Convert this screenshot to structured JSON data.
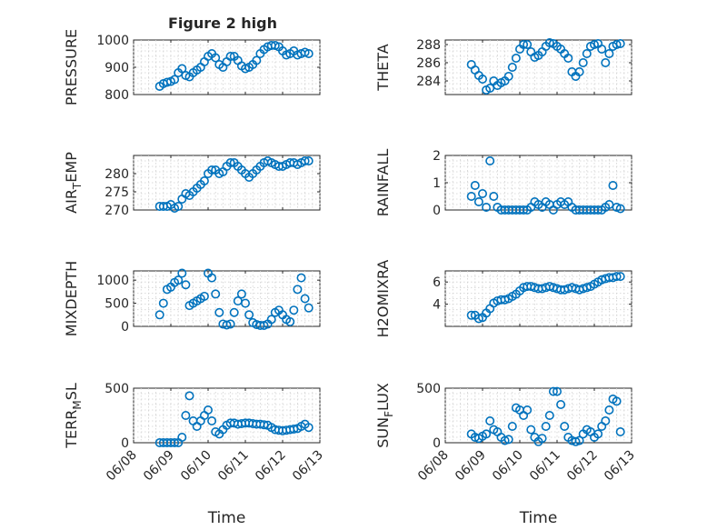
{
  "chart_data": [
    {
      "type": "scatter",
      "title": "Figure 2 high",
      "ylabel": "PRESSURE",
      "xlabel": "",
      "xlim": [
        0,
        5
      ],
      "ylim": [
        800,
        1000
      ],
      "yticks": [
        800,
        900,
        1000
      ],
      "xticklabels": [],
      "x": [
        0.7,
        0.8,
        0.9,
        1.0,
        1.1,
        1.2,
        1.3,
        1.4,
        1.5,
        1.6,
        1.7,
        1.8,
        1.9,
        2.0,
        2.1,
        2.2,
        2.3,
        2.4,
        2.5,
        2.6,
        2.7,
        2.8,
        2.9,
        3.0,
        3.1,
        3.2,
        3.3,
        3.4,
        3.5,
        3.6,
        3.7,
        3.8,
        3.9,
        4.0,
        4.1,
        4.2,
        4.3,
        4.4,
        4.5,
        4.6,
        4.7
      ],
      "y": [
        830,
        840,
        845,
        848,
        855,
        880,
        895,
        870,
        865,
        880,
        890,
        900,
        920,
        940,
        950,
        935,
        910,
        900,
        920,
        940,
        940,
        925,
        905,
        895,
        900,
        910,
        925,
        950,
        965,
        975,
        980,
        980,
        975,
        960,
        945,
        950,
        960,
        945,
        950,
        955,
        950
      ]
    },
    {
      "type": "scatter",
      "title": "",
      "ylabel": "THETA",
      "xlabel": "",
      "xlim": [
        0,
        5
      ],
      "ylim": [
        282.5,
        288.5
      ],
      "yticks": [
        284,
        286,
        288
      ],
      "xticklabels": [],
      "x": [
        0.7,
        0.8,
        0.9,
        1.0,
        1.1,
        1.2,
        1.3,
        1.4,
        1.5,
        1.6,
        1.7,
        1.8,
        1.9,
        2.0,
        2.1,
        2.2,
        2.3,
        2.4,
        2.5,
        2.6,
        2.7,
        2.8,
        2.9,
        3.0,
        3.1,
        3.2,
        3.3,
        3.4,
        3.5,
        3.6,
        3.7,
        3.8,
        3.9,
        4.0,
        4.1,
        4.2,
        4.3,
        4.4,
        4.5,
        4.6,
        4.7
      ],
      "y": [
        285.8,
        285.2,
        284.6,
        284.2,
        283.0,
        283.2,
        284.0,
        283.5,
        283.8,
        284.0,
        284.5,
        285.5,
        286.5,
        287.5,
        288.0,
        288.0,
        287.2,
        286.6,
        286.8,
        287.2,
        287.8,
        288.2,
        288.1,
        287.8,
        287.5,
        287.0,
        286.5,
        285.0,
        284.5,
        285.0,
        286.0,
        287.0,
        287.8,
        288.0,
        288.1,
        287.5,
        286.0,
        287.0,
        287.8,
        288.0,
        288.1
      ]
    },
    {
      "type": "scatter",
      "title": "",
      "ylabel": "AIR_TEMP",
      "xlabel": "",
      "xlim": [
        0,
        5
      ],
      "ylim": [
        270,
        285
      ],
      "yticks": [
        270,
        275,
        280
      ],
      "xticklabels": [],
      "x": [
        0.7,
        0.8,
        0.9,
        1.0,
        1.1,
        1.2,
        1.3,
        1.4,
        1.5,
        1.6,
        1.7,
        1.8,
        1.9,
        2.0,
        2.1,
        2.2,
        2.3,
        2.4,
        2.5,
        2.6,
        2.7,
        2.8,
        2.9,
        3.0,
        3.1,
        3.2,
        3.3,
        3.4,
        3.5,
        3.6,
        3.7,
        3.8,
        3.9,
        4.0,
        4.1,
        4.2,
        4.3,
        4.4,
        4.5,
        4.6,
        4.7
      ],
      "y": [
        271,
        271,
        271,
        271.5,
        270.5,
        271,
        273,
        274.5,
        274,
        275,
        276,
        277,
        278,
        280,
        281,
        281,
        280,
        280.5,
        282,
        283,
        283,
        282,
        281,
        280,
        279,
        280,
        281,
        282,
        283,
        283.5,
        283,
        282.5,
        282,
        282,
        282.5,
        283,
        283,
        282.5,
        283,
        283.5,
        283.5
      ]
    },
    {
      "type": "scatter",
      "title": "",
      "ylabel": "RAINFALL",
      "xlabel": "",
      "xlim": [
        0,
        5
      ],
      "ylim": [
        0,
        2
      ],
      "yticks": [
        0,
        1,
        2
      ],
      "xticklabels": [],
      "x": [
        0.7,
        0.8,
        0.9,
        1.0,
        1.1,
        1.2,
        1.3,
        1.4,
        1.5,
        1.6,
        1.7,
        1.8,
        1.9,
        2.0,
        2.1,
        2.2,
        2.3,
        2.4,
        2.5,
        2.6,
        2.7,
        2.8,
        2.9,
        3.0,
        3.1,
        3.2,
        3.3,
        3.4,
        3.5,
        3.6,
        3.7,
        3.8,
        3.9,
        4.0,
        4.1,
        4.2,
        4.3,
        4.4,
        4.5,
        4.6,
        4.7
      ],
      "y": [
        0.5,
        0.9,
        0.3,
        0.6,
        0.1,
        1.8,
        0.5,
        0.1,
        0,
        0,
        0,
        0,
        0,
        0,
        0,
        0,
        0.1,
        0.3,
        0.2,
        0.1,
        0.3,
        0.2,
        0,
        0.2,
        0.3,
        0.2,
        0.3,
        0.1,
        0,
        0,
        0,
        0,
        0,
        0,
        0,
        0,
        0.1,
        0.2,
        0.9,
        0.1,
        0.05
      ]
    },
    {
      "type": "scatter",
      "title": "",
      "ylabel": "MIXDEPTH",
      "xlabel": "",
      "xlim": [
        0,
        5
      ],
      "ylim": [
        0,
        1200
      ],
      "yticks": [
        0,
        500,
        1000
      ],
      "xticklabels": [],
      "x": [
        0.7,
        0.8,
        0.9,
        1.0,
        1.1,
        1.2,
        1.3,
        1.4,
        1.5,
        1.6,
        1.7,
        1.8,
        1.9,
        2.0,
        2.1,
        2.2,
        2.3,
        2.4,
        2.5,
        2.6,
        2.7,
        2.8,
        2.9,
        3.0,
        3.1,
        3.2,
        3.3,
        3.4,
        3.5,
        3.6,
        3.7,
        3.8,
        3.9,
        4.0,
        4.1,
        4.2,
        4.3,
        4.4,
        4.5,
        4.6,
        4.7
      ],
      "y": [
        250,
        500,
        800,
        850,
        950,
        1000,
        1150,
        900,
        450,
        500,
        550,
        600,
        650,
        1150,
        1050,
        700,
        300,
        50,
        30,
        50,
        300,
        550,
        700,
        500,
        250,
        80,
        40,
        20,
        20,
        50,
        150,
        300,
        350,
        250,
        150,
        100,
        350,
        800,
        1050,
        600,
        400
      ]
    },
    {
      "type": "scatter",
      "title": "",
      "ylabel": "H2OMIXRA",
      "xlabel": "",
      "xlim": [
        0,
        5
      ],
      "ylim": [
        2,
        7
      ],
      "yticks": [
        4,
        6
      ],
      "xticklabels": [],
      "x": [
        0.7,
        0.8,
        0.9,
        1.0,
        1.1,
        1.2,
        1.3,
        1.4,
        1.5,
        1.6,
        1.7,
        1.8,
        1.9,
        2.0,
        2.1,
        2.2,
        2.3,
        2.4,
        2.5,
        2.6,
        2.7,
        2.8,
        2.9,
        3.0,
        3.1,
        3.2,
        3.3,
        3.4,
        3.5,
        3.6,
        3.7,
        3.8,
        3.9,
        4.0,
        4.1,
        4.2,
        4.3,
        4.4,
        4.5,
        4.6,
        4.7
      ],
      "y": [
        3,
        3,
        2.7,
        2.8,
        3.2,
        3.6,
        4.1,
        4.3,
        4.4,
        4.4,
        4.5,
        4.7,
        4.9,
        5.2,
        5.5,
        5.6,
        5.6,
        5.5,
        5.4,
        5.4,
        5.5,
        5.6,
        5.5,
        5.4,
        5.3,
        5.3,
        5.4,
        5.5,
        5.4,
        5.3,
        5.4,
        5.5,
        5.6,
        5.8,
        6.0,
        6.2,
        6.3,
        6.4,
        6.4,
        6.5,
        6.5
      ]
    },
    {
      "type": "scatter",
      "title": "",
      "ylabel": "TERR_MSL",
      "xlabel": "Time",
      "xlim": [
        0,
        5
      ],
      "ylim": [
        0,
        500
      ],
      "yticks": [
        0,
        500
      ],
      "xticklabels": [
        "06/08",
        "06/09",
        "06/10",
        "06/11",
        "06/12",
        "06/13"
      ],
      "x": [
        0.7,
        0.8,
        0.9,
        1.0,
        1.1,
        1.2,
        1.3,
        1.4,
        1.5,
        1.6,
        1.7,
        1.8,
        1.9,
        2.0,
        2.1,
        2.2,
        2.3,
        2.4,
        2.5,
        2.6,
        2.7,
        2.8,
        2.9,
        3.0,
        3.1,
        3.2,
        3.3,
        3.4,
        3.5,
        3.6,
        3.7,
        3.8,
        3.9,
        4.0,
        4.1,
        4.2,
        4.3,
        4.4,
        4.5,
        4.6,
        4.7
      ],
      "y": [
        0,
        0,
        0,
        0,
        0,
        0,
        50,
        250,
        430,
        200,
        150,
        200,
        250,
        300,
        200,
        100,
        80,
        120,
        160,
        180,
        180,
        170,
        175,
        180,
        180,
        175,
        170,
        170,
        165,
        160,
        140,
        120,
        115,
        110,
        115,
        120,
        125,
        130,
        150,
        170,
        140
      ]
    },
    {
      "type": "scatter",
      "title": "",
      "ylabel": "SUN_FLUX",
      "xlabel": "Time",
      "xlim": [
        0,
        5
      ],
      "ylim": [
        0,
        500
      ],
      "yticks": [
        0,
        500
      ],
      "xticklabels": [
        "06/08",
        "06/09",
        "06/10",
        "06/11",
        "06/12",
        "06/13"
      ],
      "x": [
        0.7,
        0.8,
        0.9,
        1.0,
        1.1,
        1.2,
        1.3,
        1.4,
        1.5,
        1.6,
        1.7,
        1.8,
        1.9,
        2.0,
        2.1,
        2.2,
        2.3,
        2.4,
        2.5,
        2.6,
        2.7,
        2.8,
        2.9,
        3.0,
        3.1,
        3.2,
        3.3,
        3.4,
        3.5,
        3.6,
        3.7,
        3.8,
        3.9,
        4.0,
        4.1,
        4.2,
        4.3,
        4.4,
        4.5,
        4.6,
        4.7
      ],
      "y": [
        80,
        50,
        40,
        60,
        80,
        200,
        120,
        100,
        50,
        20,
        30,
        150,
        320,
        300,
        250,
        300,
        120,
        50,
        10,
        40,
        150,
        250,
        470,
        470,
        350,
        150,
        50,
        20,
        10,
        20,
        80,
        120,
        100,
        50,
        80,
        150,
        200,
        300,
        400,
        380,
        100
      ]
    }
  ],
  "colors": {
    "marker": "#0072BD",
    "axis": "#262626",
    "grid": "#d0d0d0"
  }
}
